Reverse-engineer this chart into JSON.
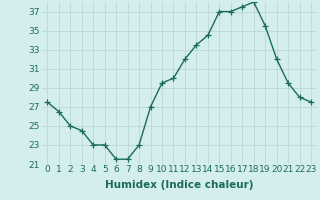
{
  "x": [
    0,
    1,
    2,
    3,
    4,
    5,
    6,
    7,
    8,
    9,
    10,
    11,
    12,
    13,
    14,
    15,
    16,
    17,
    18,
    19,
    20,
    21,
    22,
    23
  ],
  "y": [
    27.5,
    26.5,
    25.0,
    24.5,
    23.0,
    23.0,
    21.5,
    21.5,
    23.0,
    27.0,
    29.5,
    30.0,
    32.0,
    33.5,
    34.5,
    37.0,
    37.0,
    37.5,
    38.0,
    35.5,
    32.0,
    29.5,
    28.0,
    27.5
  ],
  "line_color": "#1a6b5e",
  "marker": "+",
  "markersize": 4,
  "linewidth": 1.0,
  "bg_color": "#d4eeee",
  "grid_color": "#b8d0d0",
  "xlabel": "Humidex (Indice chaleur)",
  "ylim": [
    21,
    38
  ],
  "yticks": [
    21,
    23,
    25,
    27,
    29,
    31,
    33,
    35,
    37
  ],
  "xticks": [
    0,
    1,
    2,
    3,
    4,
    5,
    6,
    7,
    8,
    9,
    10,
    11,
    12,
    13,
    14,
    15,
    16,
    17,
    18,
    19,
    20,
    21,
    22,
    23
  ],
  "tick_fontsize": 6.5,
  "xlabel_fontsize": 7.5
}
